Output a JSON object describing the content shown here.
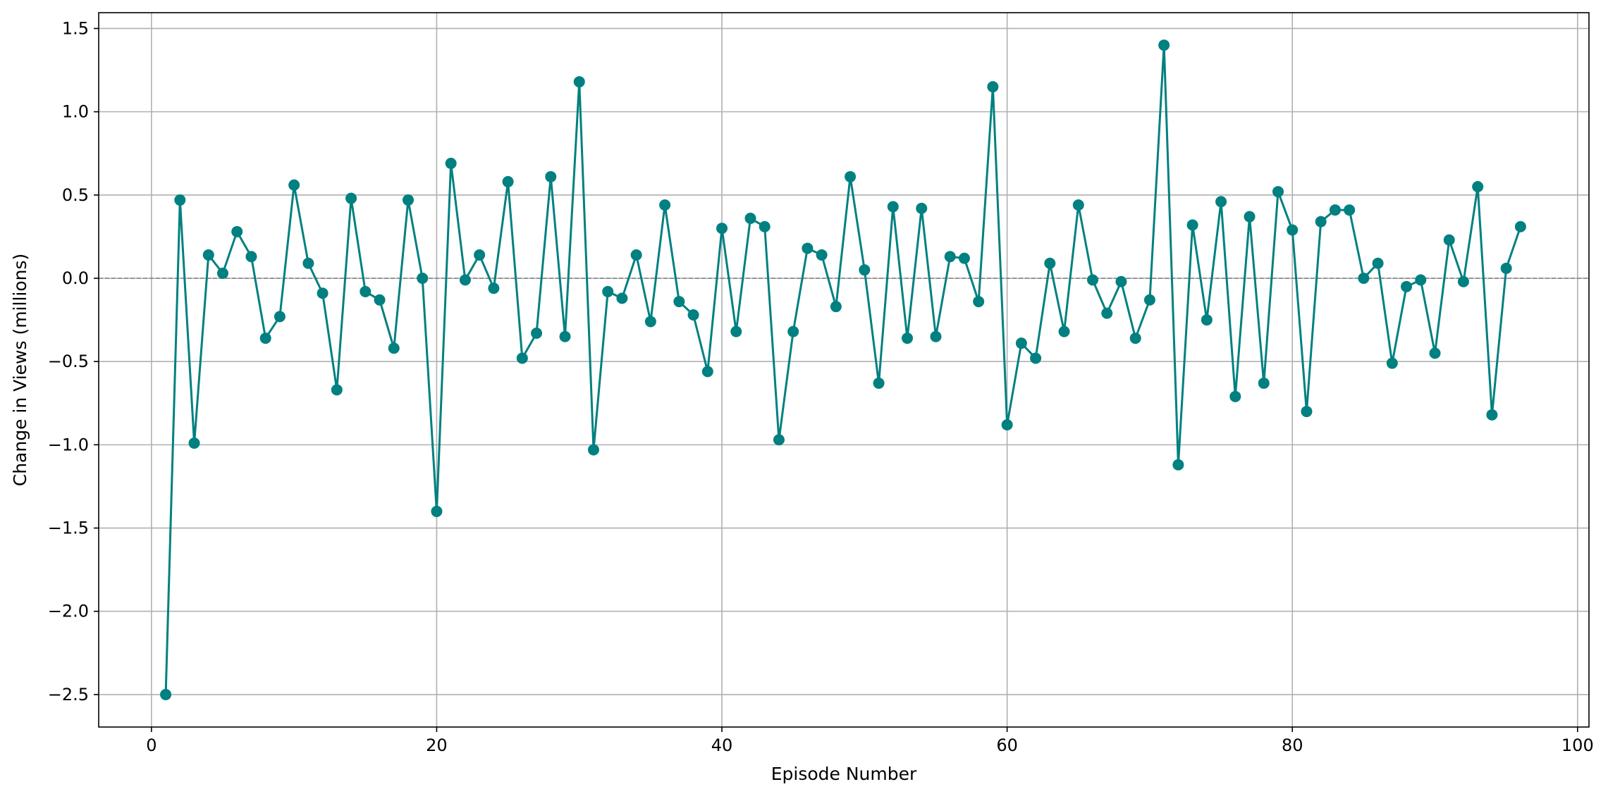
{
  "chart_data": {
    "type": "line",
    "title": "",
    "xlabel": "Episode Number",
    "ylabel": "Change in Views (millions)",
    "xlim": [
      -3.7,
      100.8
    ],
    "ylim": [
      -2.695,
      1.595
    ],
    "x_ticks": [
      0,
      20,
      40,
      60,
      80,
      100
    ],
    "x_tick_labels": [
      "0",
      "20",
      "40",
      "60",
      "80",
      "100"
    ],
    "y_ticks": [
      1.5,
      1.0,
      0.5,
      0.0,
      -0.5,
      -1.0,
      -1.5,
      -2.0,
      -2.5
    ],
    "y_tick_labels": [
      "1.5",
      "1.0",
      "0.5",
      "0.0",
      "−0.5",
      "−1.0",
      "−1.5",
      "−2.0",
      "−2.5"
    ],
    "grid": true,
    "reference_line": {
      "y": 0,
      "style": "dashed",
      "color": "#808080"
    },
    "series": [
      {
        "color": "#008080",
        "marker": "circle",
        "x": [
          1,
          2,
          3,
          4,
          5,
          6,
          7,
          8,
          9,
          10,
          11,
          12,
          13,
          14,
          15,
          16,
          17,
          18,
          19,
          20,
          21,
          22,
          23,
          24,
          25,
          26,
          27,
          28,
          29,
          30,
          31,
          32,
          33,
          34,
          35,
          36,
          37,
          38,
          39,
          40,
          41,
          42,
          43,
          44,
          45,
          46,
          47,
          48,
          49,
          50,
          51,
          52,
          53,
          54,
          55,
          56,
          57,
          58,
          59,
          60,
          61,
          62,
          63,
          64,
          65,
          66,
          67,
          68,
          69,
          70,
          71,
          72,
          73,
          74,
          75,
          76,
          77,
          78,
          79,
          80,
          81,
          82,
          83,
          84,
          85,
          86,
          87,
          88,
          89,
          90,
          91,
          92,
          93,
          94,
          95,
          96
        ],
        "values": [
          -2.5,
          0.47,
          -0.99,
          0.14,
          0.03,
          0.28,
          0.13,
          -0.36,
          -0.23,
          0.56,
          0.09,
          -0.09,
          -0.67,
          0.48,
          -0.08,
          -0.13,
          -0.42,
          0.47,
          0.0,
          -1.4,
          0.69,
          -0.01,
          0.14,
          -0.06,
          0.58,
          -0.48,
          -0.33,
          0.61,
          -0.35,
          1.18,
          -1.03,
          -0.08,
          -0.12,
          0.14,
          -0.26,
          0.44,
          -0.14,
          -0.22,
          -0.56,
          0.3,
          -0.32,
          0.36,
          0.31,
          -0.97,
          -0.32,
          0.18,
          0.14,
          -0.17,
          0.61,
          0.05,
          -0.63,
          0.43,
          -0.36,
          0.42,
          -0.35,
          0.13,
          0.12,
          -0.14,
          1.15,
          -0.88,
          -0.39,
          -0.48,
          0.09,
          -0.32,
          0.44,
          -0.01,
          -0.21,
          -0.02,
          -0.36,
          -0.13,
          1.4,
          -1.12,
          0.32,
          -0.25,
          0.46,
          -0.71,
          0.37,
          -0.63,
          0.52,
          0.29,
          -0.8,
          0.34,
          0.41,
          0.41,
          0.0,
          0.09,
          -0.51,
          -0.05,
          -0.01,
          -0.45,
          0.23,
          -0.02,
          0.55,
          -0.82,
          0.06,
          0.31
        ]
      }
    ]
  }
}
